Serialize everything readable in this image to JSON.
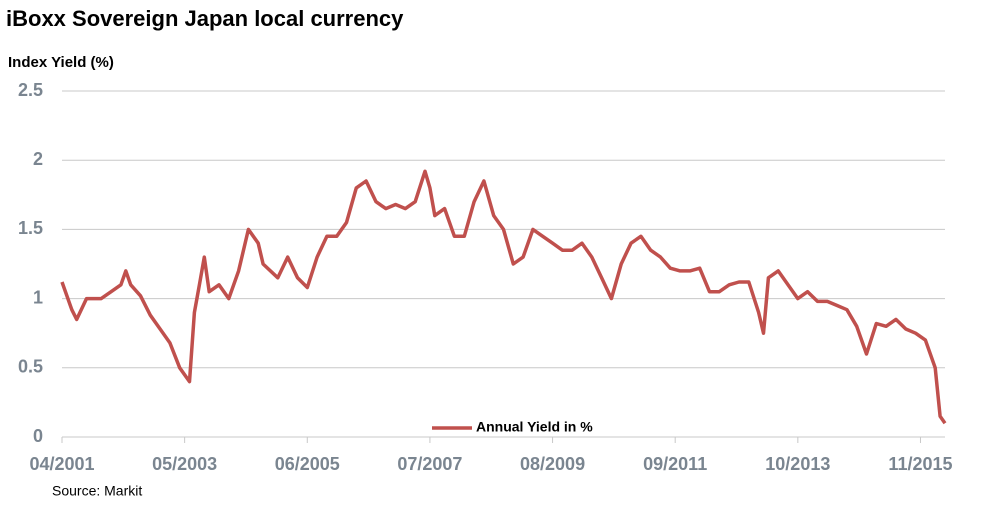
{
  "chart_data": {
    "type": "line",
    "title": "iBoxx Sovereign Japan local currency",
    "y_label": "Index Yield (%)",
    "source": "Source: Markit",
    "x": [
      "04/2001",
      "06/2001",
      "07/2001",
      "09/2001",
      "12/2001",
      "02/2002",
      "04/2002",
      "05/2002",
      "06/2002",
      "08/2002",
      "10/2002",
      "12/2002",
      "02/2003",
      "04/2003",
      "06/2003",
      "07/2003",
      "08/2003",
      "09/2003",
      "10/2003",
      "12/2003",
      "02/2004",
      "04/2004",
      "06/2004",
      "08/2004",
      "09/2004",
      "12/2004",
      "02/2005",
      "04/2005",
      "06/2005",
      "08/2005",
      "10/2005",
      "12/2005",
      "02/2006",
      "04/2006",
      "06/2006",
      "08/2006",
      "10/2006",
      "12/2006",
      "02/2007",
      "04/2007",
      "06/2007",
      "07/2007",
      "08/2007",
      "10/2007",
      "12/2007",
      "02/2008",
      "04/2008",
      "06/2008",
      "08/2008",
      "10/2008",
      "12/2008",
      "02/2009",
      "04/2009",
      "06/2009",
      "08/2009",
      "10/2009",
      "12/2009",
      "02/2010",
      "04/2010",
      "06/2010",
      "08/2010",
      "10/2010",
      "12/2010",
      "02/2011",
      "04/2011",
      "06/2011",
      "08/2011",
      "10/2011",
      "12/2011",
      "02/2012",
      "04/2012",
      "06/2012",
      "08/2012",
      "10/2012",
      "12/2012",
      "02/2013",
      "03/2013",
      "04/2013",
      "06/2013",
      "08/2013",
      "10/2013",
      "12/2013",
      "02/2014",
      "04/2014",
      "06/2014",
      "08/2014",
      "10/2014",
      "12/2014",
      "02/2015",
      "04/2015",
      "06/2015",
      "08/2015",
      "10/2015",
      "12/2015",
      "02/2016",
      "03/2016",
      "04/2016"
    ],
    "series": [
      {
        "name": "Annual Yield in %",
        "color": "#c0504d",
        "values": [
          1.12,
          0.92,
          0.85,
          1.0,
          1.0,
          1.05,
          1.1,
          1.2,
          1.1,
          1.02,
          0.88,
          0.78,
          0.68,
          0.5,
          0.4,
          0.9,
          1.1,
          1.3,
          1.05,
          1.1,
          1.0,
          1.2,
          1.5,
          1.4,
          1.25,
          1.15,
          1.3,
          1.15,
          1.08,
          1.3,
          1.45,
          1.45,
          1.55,
          1.8,
          1.85,
          1.7,
          1.65,
          1.68,
          1.65,
          1.7,
          1.92,
          1.8,
          1.6,
          1.65,
          1.45,
          1.45,
          1.7,
          1.85,
          1.6,
          1.5,
          1.25,
          1.3,
          1.5,
          1.45,
          1.4,
          1.35,
          1.35,
          1.4,
          1.3,
          1.15,
          1.0,
          1.25,
          1.4,
          1.45,
          1.35,
          1.3,
          1.22,
          1.2,
          1.2,
          1.22,
          1.05,
          1.05,
          1.1,
          1.12,
          1.12,
          0.9,
          0.75,
          1.15,
          1.2,
          1.1,
          1.0,
          1.05,
          0.98,
          0.98,
          0.95,
          0.92,
          0.8,
          0.6,
          0.82,
          0.8,
          0.85,
          0.78,
          0.75,
          0.7,
          0.5,
          0.15,
          0.1
        ]
      }
    ],
    "xlim": [
      "04/2001",
      "04/2016"
    ],
    "xticks": [
      "04/2001",
      "05/2003",
      "06/2005",
      "07/2007",
      "08/2009",
      "09/2011",
      "10/2013",
      "11/2015"
    ],
    "ylim": [
      0,
      2.5
    ],
    "yticks": [
      0,
      0.5,
      1,
      1.5,
      2,
      2.5
    ],
    "grid": true,
    "legend": "bottom"
  }
}
